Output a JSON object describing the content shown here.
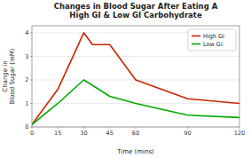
{
  "chart_data": {
    "type": "line",
    "title": "Changes in Blood Sugar After Eating A\nHigh GI & Low GI Carbohydrate",
    "x_label": "Time (mins)",
    "y_label": "Change in\nBlood Sugar (mM)",
    "series": [
      {
        "name": "High GI",
        "color": "#cc2200",
        "x": [
          0,
          15,
          30,
          35,
          45,
          60,
          90,
          120
        ],
        "values": [
          0.1,
          1.6,
          4.0,
          3.5,
          3.5,
          2.0,
          1.2,
          1.0
        ]
      },
      {
        "name": "Low GI",
        "color": "#00aa00",
        "x": [
          0,
          15,
          30,
          45,
          60,
          90,
          120
        ],
        "values": [
          0.1,
          1.0,
          2.0,
          1.3,
          1.0,
          0.5,
          0.4
        ]
      }
    ],
    "xlim": [
      0,
      120
    ],
    "ylim": [
      0,
      4.3
    ],
    "xticks": [
      0,
      15,
      30,
      45,
      60,
      90,
      120
    ],
    "yticks": [
      0,
      1,
      2,
      3,
      4
    ],
    "grid": true,
    "legend": "upper right"
  }
}
